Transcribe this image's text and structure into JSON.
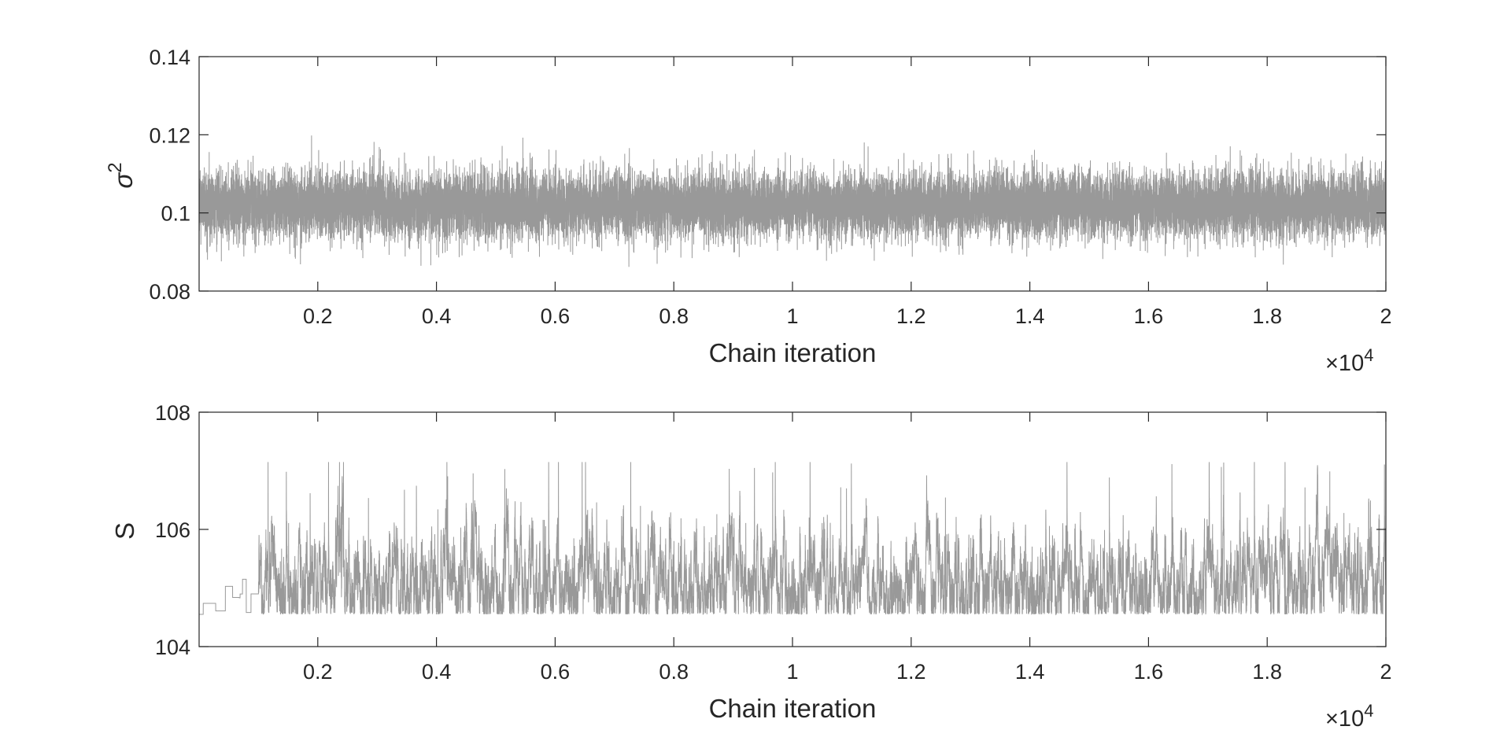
{
  "chart_data": [
    {
      "type": "line",
      "title": "",
      "xlabel": "Chain iteration",
      "ylabel": "σ",
      "ylabel_superscript": "2",
      "x_exponent_base": "×10",
      "x_exponent_power": "4",
      "xlim": [
        0,
        20000
      ],
      "ylim": [
        0.08,
        0.14
      ],
      "x_tick_labels": [
        "0.2",
        "0.4",
        "0.6",
        "0.8",
        "1",
        "1.2",
        "1.4",
        "1.6",
        "1.8",
        "2"
      ],
      "y_tick_labels": [
        "0.08",
        "0.1",
        "0.12",
        "0.14"
      ],
      "grid": false,
      "box": true,
      "series": [
        {
          "n_points": 20000,
          "color": "#999999",
          "center": 0.102,
          "typical_range": [
            0.093,
            0.111
          ],
          "min": 0.086,
          "max": 0.122
        }
      ]
    },
    {
      "type": "line",
      "title": "",
      "xlabel": "Chain iteration",
      "ylabel": "S",
      "x_exponent_base": "×10",
      "x_exponent_power": "4",
      "xlim": [
        0,
        20000
      ],
      "ylim": [
        104,
        108
      ],
      "x_tick_labels": [
        "0.2",
        "0.4",
        "0.6",
        "0.8",
        "1",
        "1.2",
        "1.4",
        "1.6",
        "1.8",
        "2"
      ],
      "y_tick_labels": [
        "104",
        "106",
        "108"
      ],
      "grid": false,
      "box": true,
      "series": [
        {
          "n_points": 20000,
          "color": "#999999",
          "start_value": 104.55,
          "floor": 104.55,
          "typical_range": [
            104.6,
            105.8
          ],
          "max": 107.15
        }
      ]
    }
  ]
}
